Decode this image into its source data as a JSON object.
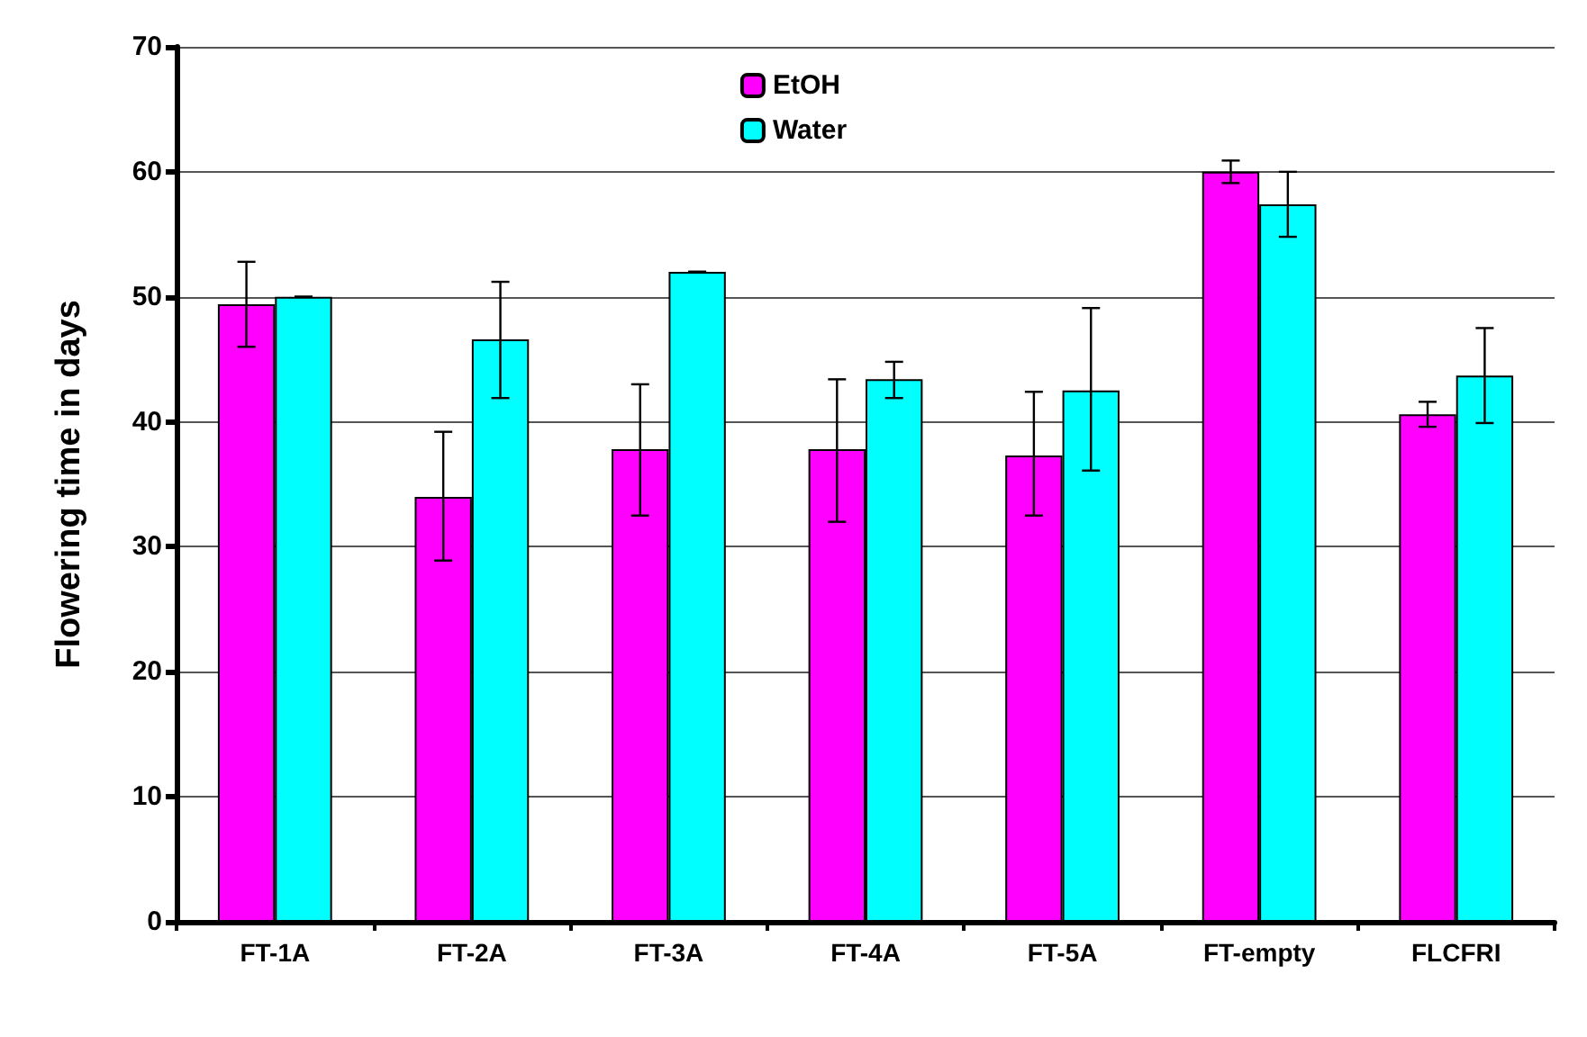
{
  "chart_data": {
    "type": "bar",
    "ylabel": "Flowering time in days",
    "categories": [
      "FT-1A",
      "FT-2A",
      "FT-3A",
      "FT-4A",
      "FT-5A",
      "FT-empty",
      "FLCFRI"
    ],
    "series": [
      {
        "name": "EtOH",
        "color": "#ff00ff",
        "values": [
          49.4,
          34,
          37.8,
          37.8,
          37.3,
          60,
          40.6
        ],
        "errors": [
          [
            46,
            52.8
          ],
          [
            28.9,
            39.2
          ],
          [
            32.5,
            43
          ],
          [
            32,
            43.4
          ],
          [
            32.5,
            42.4
          ],
          [
            59.1,
            60.9
          ],
          [
            39.6,
            41.6
          ]
        ]
      },
      {
        "name": "Water",
        "color": "#00ffff",
        "values": [
          50,
          46.6,
          52,
          43.4,
          42.5,
          57.4,
          43.7
        ],
        "errors": [
          [
            50,
            50
          ],
          [
            41.9,
            51.2
          ],
          [
            52,
            52
          ],
          [
            41.9,
            44.8
          ],
          [
            36.1,
            49.1
          ],
          [
            54.8,
            60
          ],
          [
            39.9,
            47.5
          ]
        ]
      }
    ],
    "ylim": [
      0,
      70
    ],
    "yticks": [
      0,
      10,
      20,
      30,
      40,
      50,
      60,
      70
    ],
    "grid": "y",
    "legend": "top"
  }
}
